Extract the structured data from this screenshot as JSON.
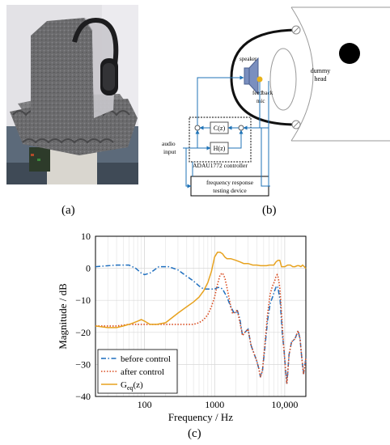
{
  "panels": {
    "a": "(a)",
    "b": "(b)",
    "c": "(c)"
  },
  "diagram": {
    "speaker": "speaker",
    "feedback_mic_1": "feedback",
    "feedback_mic_2": "mic",
    "dummy_head_1": "dummy",
    "dummy_head_2": "head",
    "audio_input_1": "audio",
    "audio_input_2": "input",
    "controller": "ADAU1772 controller",
    "c_block": "C(z)",
    "h_block": "H(z)",
    "frt_1": "frequency response",
    "frt_2": "testing device"
  },
  "chart_data": {
    "type": "line",
    "xlabel": "Frequency / Hz",
    "ylabel": "Magnitude / dB",
    "x_scale": "log",
    "xlim": [
      20,
      20000
    ],
    "ylim": [
      -40,
      10
    ],
    "x_ticks": [
      100,
      1000,
      10000
    ],
    "x_tick_labels": [
      "100",
      "1000",
      "10,000"
    ],
    "y_ticks": [
      10,
      0,
      -10,
      -20,
      -30,
      -40
    ],
    "y_tick_labels": [
      "10",
      "0",
      "−10",
      "−20",
      "−30",
      "−40"
    ],
    "grid": true,
    "legend_position": "bottom-left",
    "series": [
      {
        "name": "before control",
        "color": "#1f6fbf",
        "style": "dashdot",
        "x": [
          20,
          40,
          60,
          75,
          90,
          100,
          120,
          160,
          220,
          300,
          400,
          500,
          600,
          700,
          800,
          900,
          1000,
          1100,
          1200,
          1300,
          1500,
          1700,
          1900,
          2000,
          2100,
          2300,
          2500,
          2700,
          3000,
          3300,
          3700,
          4000,
          4300,
          4500,
          4800,
          5200,
          5700,
          6200,
          6700,
          7200,
          7600,
          8000,
          8600,
          9200,
          9800,
          10300,
          10700,
          11000,
          11500,
          12500,
          14000,
          15500,
          16500,
          17500,
          18500,
          19500,
          20000
        ],
        "y": [
          0.5,
          1,
          1,
          0,
          -1.5,
          -2,
          -1.5,
          0.5,
          0.5,
          -0.5,
          -2.5,
          -4,
          -5.5,
          -6.5,
          -6.5,
          -6.5,
          -6.5,
          -6,
          -6,
          -6.5,
          -9,
          -12,
          -14,
          -14,
          -13,
          -16,
          -21,
          -20,
          -19,
          -24,
          -27,
          -29,
          -31.5,
          -34,
          -32,
          -25,
          -16,
          -11,
          -9,
          -7,
          -5.5,
          -6,
          -10,
          -20,
          -26,
          -32,
          -36,
          -33,
          -27,
          -23,
          -22,
          -19.5,
          -22,
          -28,
          -33,
          -30,
          -28
        ]
      },
      {
        "name": "after control",
        "color": "#d94a1e",
        "style": "dotted",
        "x": [
          20,
          40,
          60,
          80,
          100,
          120,
          150,
          200,
          250,
          300,
          400,
          500,
          600,
          700,
          800,
          900,
          1000,
          1100,
          1200,
          1300,
          1400,
          1500,
          1600,
          1700,
          1800,
          1900,
          2000,
          2100,
          2300,
          2500,
          2700,
          3000,
          3300,
          3700,
          4000,
          4300,
          4500,
          4800,
          5200,
          5700,
          6200,
          6700,
          7200,
          7500,
          7800,
          8100,
          8500,
          9000,
          9600,
          10300,
          10700,
          11000,
          11500,
          12500,
          14000,
          15500,
          16500,
          17500,
          18500,
          19500,
          20000
        ],
        "y": [
          -18,
          -18,
          -17.5,
          -17.5,
          -17.5,
          -17.5,
          -17.5,
          -17.5,
          -17.5,
          -17.5,
          -17.5,
          -17.5,
          -17,
          -16,
          -14.5,
          -12,
          -9,
          -5,
          -2,
          -1.5,
          -3,
          -6,
          -9,
          -12,
          -14,
          -14,
          -13.5,
          -13,
          -17,
          -21,
          -20,
          -19,
          -24,
          -27,
          -29,
          -31.5,
          -34,
          -32,
          -24,
          -14,
          -8,
          -5.5,
          -4,
          -2.5,
          -2,
          -3,
          -6,
          -14,
          -24,
          -32,
          -36,
          -33,
          -27,
          -23,
          -22,
          -19.5,
          -22,
          -28,
          -33,
          -30,
          -28
        ]
      },
      {
        "name": "Geq(z)",
        "name_main": "G",
        "name_sub": "eq",
        "name_suffix": "(z)",
        "color": "#e7a21f",
        "style": "solid",
        "x": [
          20,
          30,
          40,
          50,
          60,
          70,
          80,
          90,
          100,
          120,
          150,
          200,
          300,
          400,
          500,
          600,
          700,
          800,
          900,
          1000,
          1100,
          1200,
          1300,
          1400,
          1500,
          1700,
          2000,
          2300,
          2600,
          3000,
          3500,
          4000,
          4500,
          5000,
          5500,
          6000,
          6500,
          7000,
          7500,
          8000,
          8500,
          9000,
          10000,
          11000,
          12000,
          13000,
          14000,
          15000,
          16000,
          17000,
          18000,
          19000,
          20000
        ],
        "y": [
          -18,
          -18.5,
          -18.5,
          -18,
          -17.5,
          -17,
          -16.5,
          -16,
          -16.5,
          -17.5,
          -17.5,
          -17,
          -14,
          -12,
          -10.5,
          -9,
          -7,
          -4.5,
          -1,
          3.5,
          5,
          5,
          4.5,
          3.5,
          3,
          3,
          2.5,
          2,
          1.5,
          1.5,
          1,
          1,
          0.8,
          0.8,
          0.8,
          1,
          1,
          1,
          2,
          2.5,
          2.5,
          0.5,
          0.5,
          1,
          1,
          0.5,
          0.5,
          0.8,
          0.8,
          0.5,
          1,
          0.5,
          0
        ]
      }
    ]
  }
}
